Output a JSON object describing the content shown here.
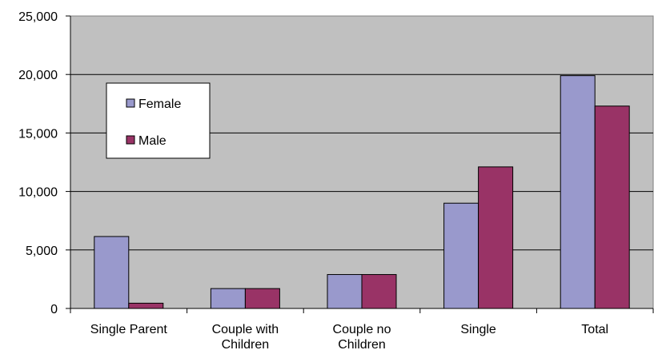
{
  "chart_data": {
    "type": "bar",
    "categories": [
      [
        "Single Parent"
      ],
      [
        "Couple with",
        "Children"
      ],
      [
        "Couple no",
        "Children"
      ],
      [
        "Single"
      ],
      [
        "Total"
      ]
    ],
    "series": [
      {
        "name": "Female",
        "color": "#9999cc",
        "values": [
          6150,
          1700,
          2900,
          9000,
          19900
        ]
      },
      {
        "name": "Male",
        "color": "#993366",
        "values": [
          450,
          1700,
          2900,
          12100,
          17300
        ]
      }
    ],
    "ylim": [
      0,
      25000
    ],
    "yticks": [
      0,
      5000,
      10000,
      15000,
      20000,
      25000
    ],
    "ytick_labels": [
      "0",
      "5,000",
      "10,000",
      "15,000",
      "20,000",
      "25,000"
    ],
    "plot_background": "#c0c0c0",
    "grid": true,
    "legend_position": "upper-left inside plot"
  }
}
